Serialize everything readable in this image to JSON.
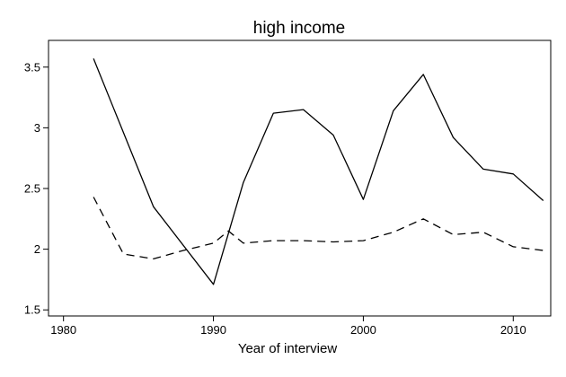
{
  "chart_data": {
    "type": "line",
    "title": "high income",
    "xlabel": "Year of interview",
    "ylabel": "",
    "xlim": [
      1979,
      2012.5
    ],
    "ylim": [
      1.45,
      3.72
    ],
    "xticks": [
      1980,
      1990,
      2000,
      2010
    ],
    "yticks": [
      1.5,
      2,
      2.5,
      3,
      3.5
    ],
    "xtick_labels": [
      "1980",
      "1990",
      "2000",
      "2010"
    ],
    "ytick_labels": [
      "1.5",
      "2",
      "2.5",
      "3",
      "3.5"
    ],
    "grid": false,
    "legend": "none",
    "series": [
      {
        "style": "solid",
        "color": "#000000",
        "x": [
          1982,
          1986,
          1990,
          1992,
          1994,
          1996,
          1998,
          2000,
          2002,
          2004,
          2006,
          2008,
          2010,
          2012
        ],
        "values": [
          3.57,
          2.35,
          1.71,
          2.55,
          3.12,
          3.15,
          2.94,
          2.41,
          3.14,
          3.44,
          2.92,
          2.66,
          2.62,
          2.4
        ]
      },
      {
        "style": "dashed",
        "color": "#000000",
        "x": [
          1982,
          1984,
          1986,
          1988,
          1990,
          1991,
          1992,
          1994,
          1996,
          1998,
          2000,
          2002,
          2004,
          2006,
          2008,
          2010,
          2012
        ],
        "values": [
          2.43,
          1.96,
          1.92,
          1.99,
          2.05,
          2.15,
          2.05,
          2.07,
          2.07,
          2.06,
          2.07,
          2.14,
          2.25,
          2.12,
          2.14,
          2.02,
          1.99
        ]
      }
    ]
  }
}
